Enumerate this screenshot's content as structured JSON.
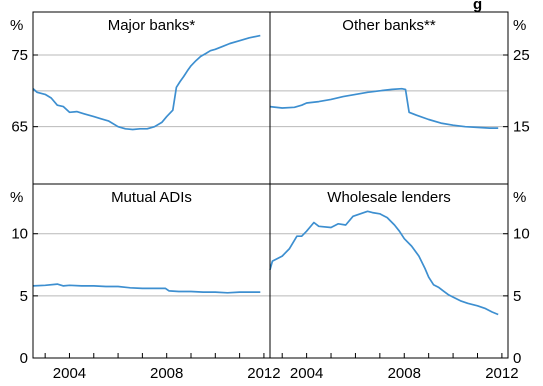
{
  "title_fragment": "g",
  "style": {
    "line_color": "#3d8fd0",
    "grid_color": "#b9b9b9",
    "frame_color": "#000000"
  },
  "x_axis": {
    "tick_labels": [
      "2004",
      "2008",
      "2012"
    ],
    "range": [
      2002.5,
      2012.25
    ],
    "minor_ticks": "yearly"
  },
  "chart_data": [
    {
      "type": "line",
      "title": "Major banks*",
      "unit_label": "%",
      "y_tick_labels": [
        "75",
        "65"
      ],
      "ylim": [
        57,
        81
      ],
      "gridlines": [
        75,
        70,
        65
      ],
      "grid": true,
      "x": [
        2002.5,
        2002.67,
        2003.0,
        2003.25,
        2003.5,
        2003.75,
        2004.0,
        2004.3,
        2004.6,
        2005.0,
        2005.3,
        2005.6,
        2006.0,
        2006.3,
        2006.6,
        2006.9,
        2007.2,
        2007.5,
        2007.8,
        2008.0,
        2008.25,
        2008.4,
        2008.55,
        2008.7,
        2008.85,
        2009.0,
        2009.2,
        2009.4,
        2009.6,
        2009.8,
        2010.0,
        2010.3,
        2010.6,
        2011.0,
        2011.4,
        2011.85
      ],
      "series": [
        {
          "values": [
            70.3,
            69.8,
            69.5,
            69.0,
            68.0,
            67.8,
            67.0,
            67.1,
            66.8,
            66.4,
            66.1,
            65.8,
            65.0,
            64.7,
            64.6,
            64.7,
            64.7,
            65.0,
            65.6,
            66.4,
            67.3,
            70.5,
            71.3,
            72.0,
            72.8,
            73.5,
            74.2,
            74.8,
            75.2,
            75.6,
            75.8,
            76.2,
            76.6,
            77.0,
            77.4,
            77.7
          ]
        }
      ]
    },
    {
      "type": "line",
      "title": "Other banks**",
      "unit_label": "%",
      "y_tick_labels": [
        "25",
        "15"
      ],
      "ylim": [
        7,
        31
      ],
      "gridlines": [
        25,
        20,
        15
      ],
      "grid": true,
      "x": [
        2002.5,
        2003.0,
        2003.5,
        2003.8,
        2004.0,
        2004.5,
        2005.0,
        2005.5,
        2006.0,
        2006.5,
        2007.0,
        2007.5,
        2007.9,
        2008.05,
        2008.2,
        2008.5,
        2009.0,
        2009.5,
        2010.0,
        2010.5,
        2011.0,
        2011.5,
        2011.85
      ],
      "series": [
        {
          "values": [
            17.8,
            17.6,
            17.7,
            18.0,
            18.3,
            18.5,
            18.8,
            19.2,
            19.5,
            19.8,
            20.0,
            20.2,
            20.3,
            20.2,
            17.0,
            16.6,
            16.0,
            15.5,
            15.2,
            15.0,
            14.9,
            14.8,
            14.8
          ]
        }
      ]
    },
    {
      "type": "line",
      "title": "Mutual ADIs",
      "unit_label": "%",
      "y_tick_labels": [
        "10",
        "5",
        "0"
      ],
      "ylim": [
        0,
        14
      ],
      "gridlines": [
        10,
        5
      ],
      "grid": true,
      "x": [
        2002.5,
        2003.0,
        2003.5,
        2003.75,
        2004.0,
        2004.5,
        2005.0,
        2005.5,
        2006.0,
        2006.5,
        2007.0,
        2007.5,
        2007.95,
        2008.1,
        2008.5,
        2009.0,
        2009.5,
        2010.0,
        2010.5,
        2011.0,
        2011.5,
        2011.85
      ],
      "series": [
        {
          "values": [
            5.8,
            5.85,
            5.95,
            5.8,
            5.85,
            5.8,
            5.8,
            5.75,
            5.75,
            5.65,
            5.6,
            5.6,
            5.6,
            5.4,
            5.35,
            5.35,
            5.3,
            5.3,
            5.25,
            5.3,
            5.3,
            5.3
          ]
        }
      ]
    },
    {
      "type": "line",
      "title": "Wholesale lenders",
      "unit_label": "%",
      "y_tick_labels": [
        "10",
        "5",
        "0"
      ],
      "ylim": [
        0,
        14
      ],
      "gridlines": [
        10,
        5
      ],
      "grid": true,
      "x": [
        2002.5,
        2002.6,
        2003.0,
        2003.3,
        2003.6,
        2003.8,
        2004.0,
        2004.3,
        2004.5,
        2005.0,
        2005.3,
        2005.6,
        2005.9,
        2006.2,
        2006.5,
        2006.7,
        2007.0,
        2007.3,
        2007.6,
        2007.8,
        2008.0,
        2008.3,
        2008.6,
        2008.85,
        2009.0,
        2009.2,
        2009.4,
        2009.6,
        2009.8,
        2010.0,
        2010.3,
        2010.6,
        2011.0,
        2011.3,
        2011.6,
        2011.85
      ],
      "series": [
        {
          "values": [
            7.1,
            7.8,
            8.2,
            8.8,
            9.8,
            9.8,
            10.2,
            10.9,
            10.6,
            10.5,
            10.8,
            10.7,
            11.4,
            11.6,
            11.8,
            11.7,
            11.6,
            11.3,
            10.7,
            10.2,
            9.6,
            9.0,
            8.2,
            7.2,
            6.5,
            5.9,
            5.7,
            5.4,
            5.1,
            4.9,
            4.6,
            4.4,
            4.2,
            4.0,
            3.7,
            3.5
          ]
        }
      ]
    }
  ]
}
